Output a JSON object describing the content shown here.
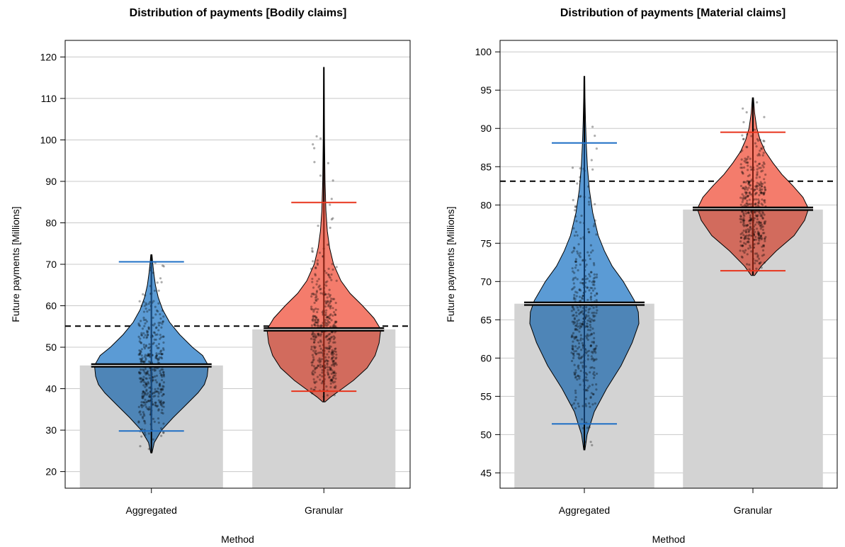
{
  "chart_data": [
    {
      "type": "violin",
      "title": "Distribution of payments [Bodily claims]",
      "xlabel": "Method",
      "ylabel": "Future payments [Millions]",
      "categories": [
        "Aggregated",
        "Granular"
      ],
      "yticks": [
        20,
        30,
        40,
        50,
        60,
        70,
        80,
        90,
        100,
        110,
        120
      ],
      "ylim": [
        16,
        124
      ],
      "grid": true,
      "reference_line": 55.1,
      "series": [
        {
          "category": "Aggregated",
          "color": "#5b9bd5",
          "bar_value": 45.6,
          "mean": 45.6,
          "whisker_low": 29.8,
          "whisker_high": 70.6,
          "min": 24.5,
          "max": 72.3,
          "density": [
            [
              24.5,
              0.01
            ],
            [
              27,
              0.05
            ],
            [
              30,
              0.18
            ],
            [
              33,
              0.38
            ],
            [
              36,
              0.6
            ],
            [
              39,
              0.82
            ],
            [
              41,
              0.93
            ],
            [
              43,
              0.98
            ],
            [
              45.6,
              1.0
            ],
            [
              48,
              0.9
            ],
            [
              50,
              0.72
            ],
            [
              53,
              0.5
            ],
            [
              56,
              0.32
            ],
            [
              59,
              0.2
            ],
            [
              62,
              0.12
            ],
            [
              65,
              0.07
            ],
            [
              68,
              0.04
            ],
            [
              70,
              0.025
            ],
            [
              72.3,
              0.01
            ]
          ]
        },
        {
          "category": "Granular",
          "color": "#f47c6c",
          "bar_value": 54.3,
          "mean": 54.3,
          "whisker_low": 39.4,
          "whisker_high": 84.9,
          "min": 36.8,
          "max": 117.5,
          "density": [
            [
              36.8,
              0.02
            ],
            [
              38,
              0.12
            ],
            [
              40,
              0.32
            ],
            [
              42,
              0.52
            ],
            [
              45,
              0.76
            ],
            [
              48,
              0.9
            ],
            [
              51,
              0.97
            ],
            [
              54.3,
              1.0
            ],
            [
              57,
              0.88
            ],
            [
              60,
              0.68
            ],
            [
              63,
              0.46
            ],
            [
              66,
              0.3
            ],
            [
              70,
              0.17
            ],
            [
              74,
              0.1
            ],
            [
              78,
              0.06
            ],
            [
              83,
              0.035
            ],
            [
              90,
              0.02
            ],
            [
              100,
              0.012
            ],
            [
              110,
              0.008
            ],
            [
              117.5,
              0.004
            ]
          ]
        }
      ]
    },
    {
      "type": "violin",
      "title": "Distribution of payments [Material claims]",
      "xlabel": "Method",
      "ylabel": "Future payments [Millions]",
      "categories": [
        "Aggregated",
        "Granular"
      ],
      "yticks": [
        45,
        50,
        55,
        60,
        65,
        70,
        75,
        80,
        85,
        90,
        95,
        100
      ],
      "ylim": [
        43,
        101.5
      ],
      "grid": true,
      "reference_line": 83.1,
      "series": [
        {
          "category": "Aggregated",
          "color": "#5b9bd5",
          "bar_value": 67.1,
          "mean": 67.1,
          "whisker_low": 51.4,
          "whisker_high": 88.1,
          "min": 48.0,
          "max": 96.8,
          "density": [
            [
              48,
              0.01
            ],
            [
              50,
              0.05
            ],
            [
              53,
              0.18
            ],
            [
              56,
              0.4
            ],
            [
              59,
              0.66
            ],
            [
              62,
              0.86
            ],
            [
              64.5,
              0.98
            ],
            [
              66,
              0.97
            ],
            [
              67.5,
              0.9
            ],
            [
              70,
              0.7
            ],
            [
              72,
              0.5
            ],
            [
              74,
              0.36
            ],
            [
              76,
              0.25
            ],
            [
              79,
              0.15
            ],
            [
              82,
              0.09
            ],
            [
              85,
              0.055
            ],
            [
              88,
              0.035
            ],
            [
              91,
              0.02
            ],
            [
              94,
              0.012
            ],
            [
              96.8,
              0.008
            ]
          ]
        },
        {
          "category": "Granular",
          "color": "#f47c6c",
          "bar_value": 79.4,
          "mean": 79.5,
          "whisker_low": 71.4,
          "whisker_high": 89.5,
          "min": 70.8,
          "max": 94.0,
          "density": [
            [
              70.8,
              0.03
            ],
            [
              72,
              0.15
            ],
            [
              74,
              0.42
            ],
            [
              76,
              0.74
            ],
            [
              78,
              0.93
            ],
            [
              79.5,
              1.0
            ],
            [
              81,
              0.9
            ],
            [
              82.5,
              0.72
            ],
            [
              84,
              0.52
            ],
            [
              85.5,
              0.36
            ],
            [
              87,
              0.22
            ],
            [
              88.5,
              0.13
            ],
            [
              90,
              0.07
            ],
            [
              92,
              0.03
            ],
            [
              94,
              0.01
            ]
          ]
        }
      ]
    }
  ]
}
